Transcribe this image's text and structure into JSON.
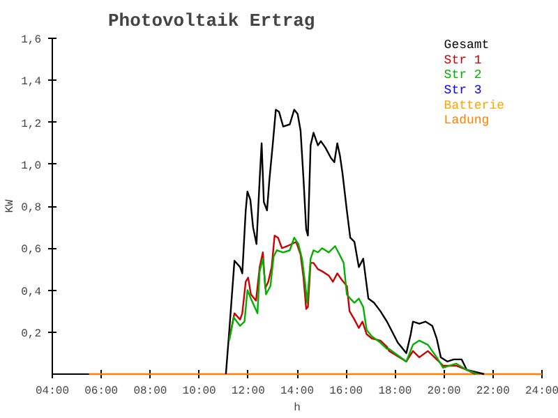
{
  "chart_data": {
    "type": "line",
    "title": "Photovoltaik Ertrag",
    "xlabel": "h",
    "ylabel": "KW",
    "xlim": [
      4,
      24
    ],
    "ylim": [
      0,
      1.6
    ],
    "xticks": [
      {
        "value": 4,
        "label": "04:00"
      },
      {
        "value": 6,
        "label": "06:00"
      },
      {
        "value": 8,
        "label": "08:00"
      },
      {
        "value": 10,
        "label": "10:00"
      },
      {
        "value": 12,
        "label": "12:00"
      },
      {
        "value": 14,
        "label": "14:00"
      },
      {
        "value": 16,
        "label": "16:00"
      },
      {
        "value": 18,
        "label": "18:00"
      },
      {
        "value": 20,
        "label": "20:00"
      },
      {
        "value": 22,
        "label": "22:00"
      },
      {
        "value": 24,
        "label": "24:00"
      }
    ],
    "yticks": [
      {
        "value": 0.2,
        "label": "0,2"
      },
      {
        "value": 0.4,
        "label": "0,4"
      },
      {
        "value": 0.6,
        "label": "0,6"
      },
      {
        "value": 0.8,
        "label": "0,8"
      },
      {
        "value": 1.0,
        "label": "1,0"
      },
      {
        "value": 1.2,
        "label": "1,2"
      },
      {
        "value": 1.4,
        "label": "1,4"
      },
      {
        "value": 1.6,
        "label": "1,6"
      }
    ],
    "grid": false,
    "legend": "top right",
    "marker": "none",
    "line_style": "solid",
    "series": [
      {
        "name": "Ladung",
        "color": "#ff8000",
        "x": [
          5.5,
          24
        ],
        "values": [
          0,
          0
        ]
      },
      {
        "name": "Gesamt",
        "color": "#000000",
        "x": [
          11.09,
          11.23,
          11.44,
          11.67,
          11.76,
          11.9,
          11.97,
          12.09,
          12.2,
          12.34,
          12.47,
          12.55,
          12.64,
          12.77,
          12.87,
          13.0,
          13.13,
          13.26,
          13.43,
          13.7,
          13.88,
          14.02,
          14.14,
          14.26,
          14.37,
          14.44,
          14.55,
          14.67,
          14.85,
          14.97,
          15.15,
          15.38,
          15.52,
          15.64,
          15.75,
          15.85,
          16.03,
          16.17,
          16.34,
          16.52,
          16.7,
          16.91,
          17.14,
          17.4,
          17.67,
          17.76,
          18.11,
          18.46,
          18.64,
          18.73,
          18.99,
          19.25,
          19.52,
          19.7,
          19.87,
          20.14,
          20.4,
          20.72,
          20.93,
          21.64
        ],
        "values": [
          0,
          0.21,
          0.54,
          0.51,
          0.48,
          0.78,
          0.87,
          0.83,
          0.7,
          0.62,
          0.93,
          1.1,
          0.82,
          0.78,
          0.93,
          1.09,
          1.26,
          1.25,
          1.18,
          1.19,
          1.26,
          1.24,
          1.16,
          0.93,
          0.69,
          0.66,
          1.09,
          1.15,
          1.09,
          1.11,
          1.08,
          1.03,
          1.01,
          1.1,
          1.04,
          0.96,
          0.78,
          0.65,
          0.63,
          0.51,
          0.55,
          0.36,
          0.34,
          0.3,
          0.25,
          0.23,
          0.15,
          0.1,
          0.19,
          0.25,
          0.24,
          0.25,
          0.23,
          0.17,
          0.08,
          0.06,
          0.07,
          0.07,
          0.02,
          0
        ]
      },
      {
        "name": "Str 1",
        "color": "#cc0000",
        "x": [
          11.23,
          11.44,
          11.67,
          11.76,
          11.9,
          12.0,
          12.11,
          12.32,
          12.47,
          12.6,
          12.7,
          12.82,
          12.96,
          13.08,
          13.22,
          13.38,
          13.6,
          13.96,
          14.14,
          14.26,
          14.37,
          14.44,
          14.55,
          14.67,
          14.85,
          15.02,
          15.29,
          15.46,
          15.64,
          15.82,
          16.03,
          16.14,
          16.34,
          16.52,
          16.67,
          16.84,
          17.05,
          17.4,
          17.67,
          17.76,
          18.46,
          18.73,
          18.99,
          19.34,
          19.7,
          19.96,
          20.5,
          20.93,
          21.28
        ],
        "values": [
          0.17,
          0.29,
          0.26,
          0.29,
          0.44,
          0.46,
          0.38,
          0.35,
          0.51,
          0.58,
          0.41,
          0.44,
          0.51,
          0.66,
          0.65,
          0.6,
          0.61,
          0.63,
          0.57,
          0.46,
          0.31,
          0.32,
          0.53,
          0.53,
          0.5,
          0.49,
          0.47,
          0.44,
          0.48,
          0.45,
          0.42,
          0.3,
          0.26,
          0.22,
          0.25,
          0.19,
          0.17,
          0.16,
          0.13,
          0.11,
          0.06,
          0.11,
          0.08,
          0.11,
          0.07,
          0.04,
          0.04,
          0.02,
          0
        ]
      },
      {
        "name": "Str 2",
        "color": "#00b000",
        "x": [
          11.23,
          11.41,
          11.67,
          11.85,
          11.97,
          12.11,
          12.38,
          12.47,
          12.6,
          12.73,
          12.91,
          13.04,
          13.17,
          13.43,
          13.7,
          13.88,
          14.05,
          14.2,
          14.32,
          14.41,
          14.55,
          14.67,
          14.85,
          15.02,
          15.29,
          15.55,
          15.73,
          15.9,
          16.03,
          16.17,
          16.34,
          16.52,
          16.7,
          16.84,
          17.05,
          17.4,
          17.67,
          17.76,
          18.46,
          18.73,
          18.99,
          19.34,
          19.7,
          19.96,
          20.5,
          20.93,
          21.37
        ],
        "values": [
          0.16,
          0.27,
          0.23,
          0.25,
          0.4,
          0.36,
          0.29,
          0.49,
          0.55,
          0.38,
          0.42,
          0.56,
          0.59,
          0.58,
          0.59,
          0.65,
          0.62,
          0.55,
          0.44,
          0.34,
          0.55,
          0.59,
          0.58,
          0.6,
          0.58,
          0.61,
          0.57,
          0.53,
          0.38,
          0.36,
          0.34,
          0.36,
          0.32,
          0.21,
          0.18,
          0.15,
          0.12,
          0.12,
          0.06,
          0.14,
          0.16,
          0.14,
          0.08,
          0.03,
          0.05,
          0.02,
          0
        ]
      },
      {
        "name": "Str 3",
        "color": "#0000ff"
      },
      {
        "name": "Batterie",
        "color": "#ffa500"
      }
    ]
  }
}
